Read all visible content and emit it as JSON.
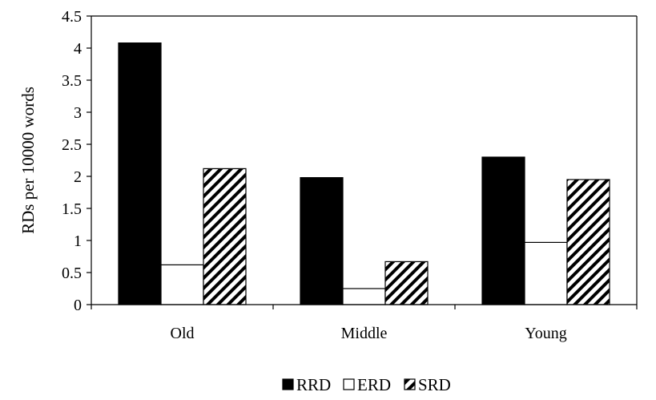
{
  "chart_data": {
    "type": "bar",
    "categories": [
      "Old",
      "Middle",
      "Young"
    ],
    "series": [
      {
        "name": "RRD",
        "values": [
          4.08,
          1.98,
          2.3
        ],
        "fill": "#000000",
        "pattern": "solid"
      },
      {
        "name": "ERD",
        "values": [
          0.62,
          0.25,
          0.97
        ],
        "fill": "#ffffff",
        "pattern": "none"
      },
      {
        "name": "SRD",
        "values": [
          2.12,
          0.67,
          1.95
        ],
        "fill": "#ffffff",
        "pattern": "diagonal-hatch"
      }
    ],
    "ylabel": "RDs per 10000 words",
    "ylim": [
      0,
      4.5
    ],
    "yticks": [
      "0",
      "0.5",
      "1",
      "1.5",
      "2",
      "2.5",
      "3",
      "3.5",
      "4",
      "4.5"
    ],
    "grid": false,
    "legend_position": "bottom"
  }
}
